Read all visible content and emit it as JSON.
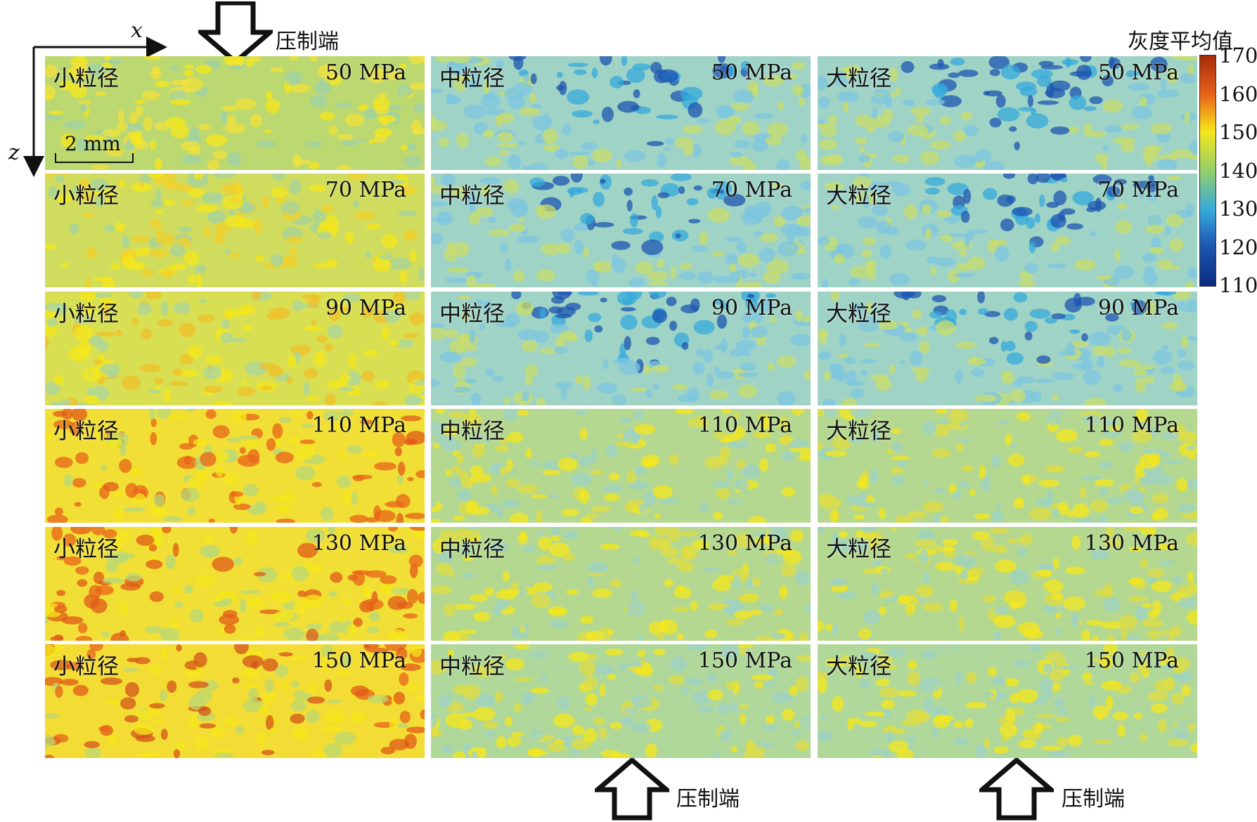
{
  "colorbar": {
    "title": "灰度平均值",
    "ticks": [
      "170",
      "160",
      "150",
      "140",
      "130",
      "120",
      "110"
    ],
    "colors": [
      "#a52a0a",
      "#e8631a",
      "#f6e71a",
      "#93cf6a",
      "#36aadc",
      "#1c55b0",
      "#0a2a80"
    ]
  },
  "axes": {
    "x": "x",
    "z": "z"
  },
  "press_label": "压制端",
  "scale_bar": "2 mm",
  "columns": [
    {
      "label": "小粒径",
      "pressures": [
        "50 MPa",
        "70 MPa",
        "90 MPa",
        "110 MPa",
        "130 MPa",
        "150 MPa"
      ]
    },
    {
      "label": "中粒径",
      "pressures": [
        "50 MPa",
        "70 MPa",
        "90 MPa",
        "110 MPa",
        "130 MPa",
        "150 MPa"
      ]
    },
    {
      "label": "大粒径",
      "pressures": [
        "50 MPa",
        "70 MPa",
        "90 MPa",
        "110 MPa",
        "130 MPa",
        "150 MPa"
      ]
    }
  ]
}
